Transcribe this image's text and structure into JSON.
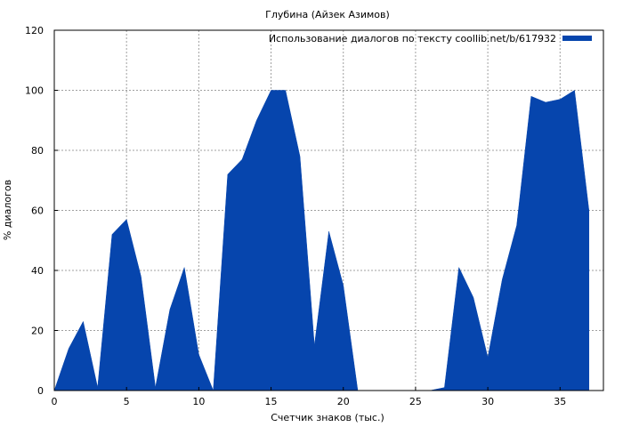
{
  "chart_data": {
    "type": "area",
    "title": "Глубина (Айзек Азимов)",
    "xlabel": "Счетчик знаков (тыс.)",
    "ylabel": "% диалогов",
    "xlim": [
      0,
      38
    ],
    "ylim": [
      0,
      120
    ],
    "xticks": [
      0,
      5,
      10,
      15,
      20,
      25,
      30,
      35
    ],
    "yticks": [
      0,
      20,
      40,
      60,
      80,
      100,
      120
    ],
    "grid": true,
    "legend_position": "top-right",
    "series": [
      {
        "name": "Использование диалогов по тексту coollib.net/b/617932",
        "color": "#0645ad",
        "x": [
          0,
          1,
          2,
          3,
          4,
          5,
          6,
          7,
          8,
          9,
          10,
          11,
          12,
          13,
          14,
          15,
          16,
          17,
          18,
          19,
          20,
          21,
          22,
          23,
          24,
          25,
          26,
          27,
          28,
          29,
          30,
          31,
          32,
          33,
          34,
          35,
          36,
          37
        ],
        "values": [
          0,
          14,
          23,
          1,
          52,
          57,
          38,
          1,
          27,
          41,
          12,
          0,
          72,
          77,
          90,
          100,
          100,
          78,
          15,
          53,
          35,
          0,
          0,
          0,
          0,
          0,
          0,
          1,
          41,
          31,
          11,
          37,
          55,
          98,
          96,
          97,
          100,
          60
        ]
      }
    ]
  }
}
